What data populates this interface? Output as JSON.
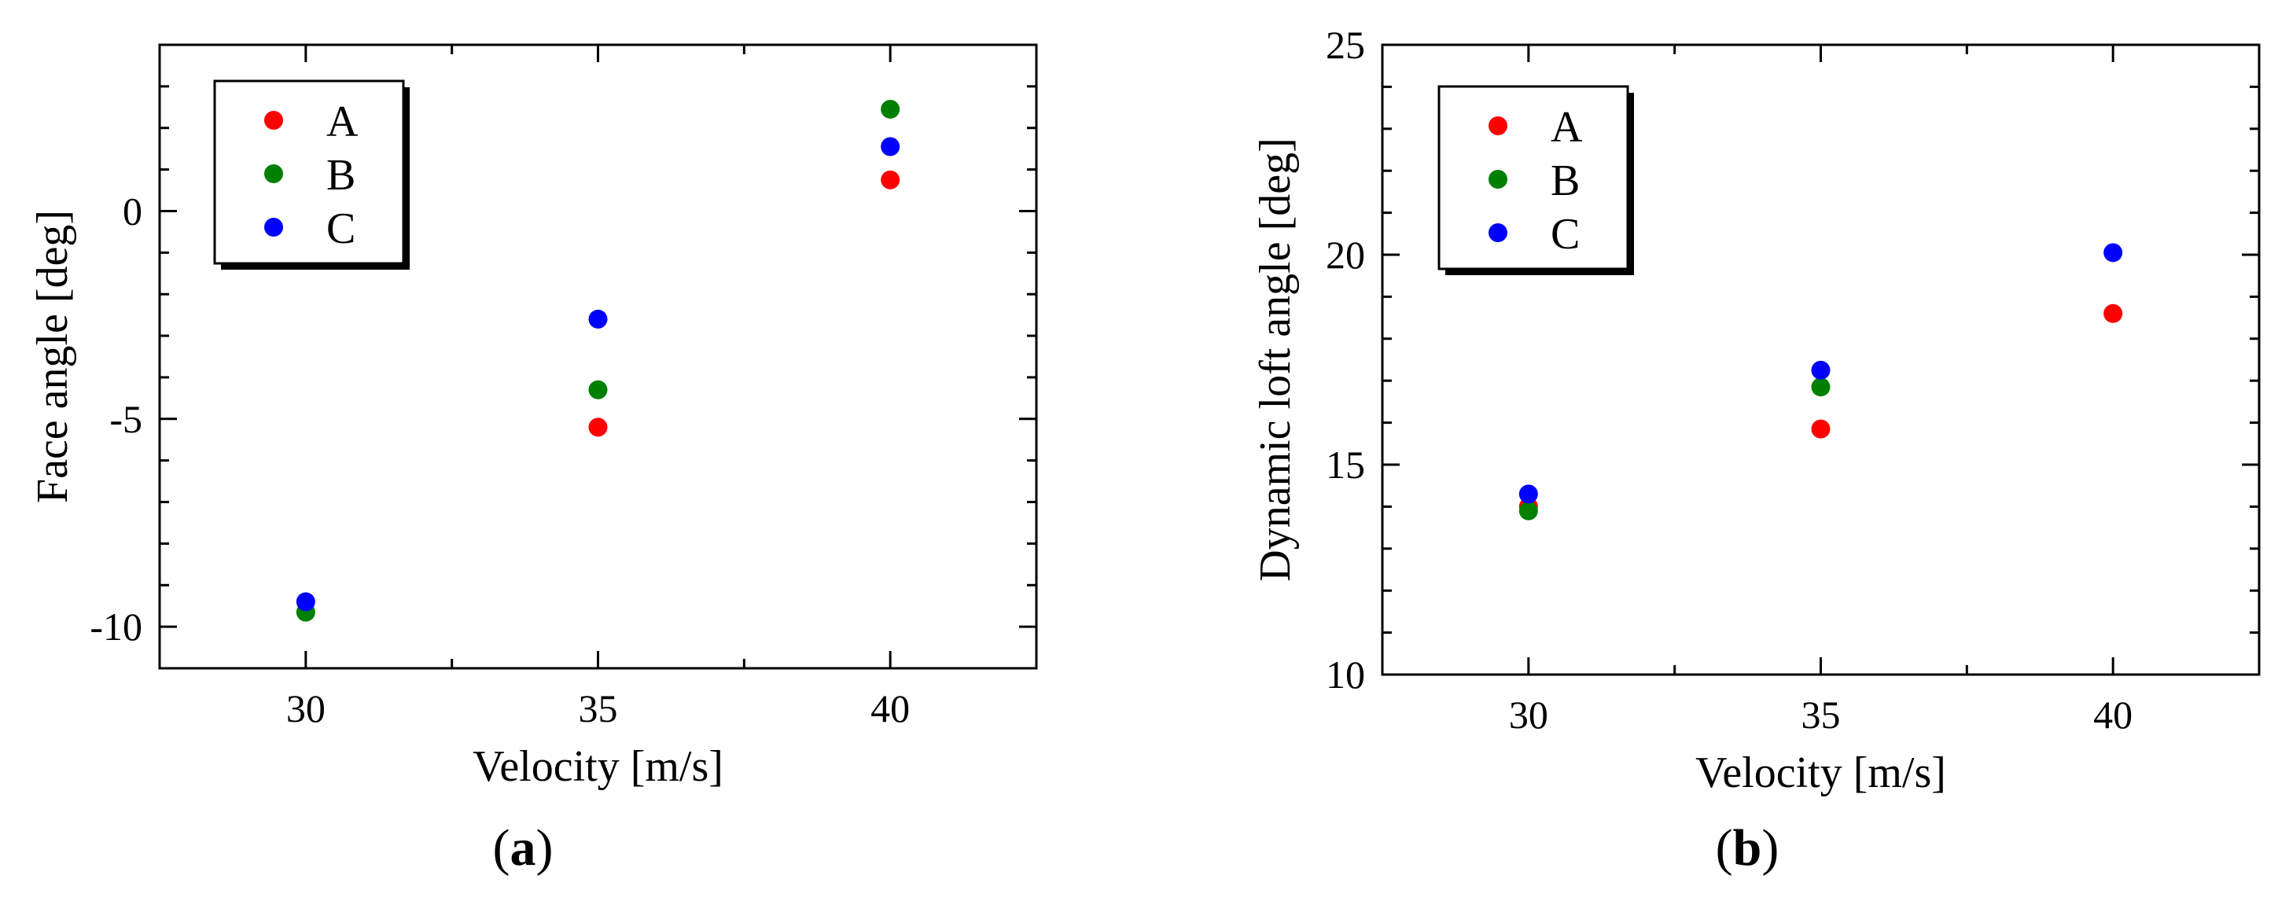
{
  "colors": {
    "A": "#ff0000",
    "B": "#008000",
    "C": "#0000ff"
  },
  "chart_data": [
    {
      "type": "scatter",
      "panel_label": {
        "open": "(",
        "letter": "a",
        "close": ")"
      },
      "xlabel": "Velocity [m/s]",
      "ylabel": "Face angle [deg]",
      "xlim": [
        27.5,
        42.5
      ],
      "ylim": [
        -11,
        4
      ],
      "x_ticks": [
        30,
        35,
        40
      ],
      "x_tick_labels": [
        "30",
        "35",
        "40"
      ],
      "y_ticks": [
        -10,
        -5,
        0
      ],
      "y_tick_labels": [
        "-10",
        "-5",
        "0"
      ],
      "y_minor_step": 1,
      "x_minor_step": 2.5,
      "legend_position": "top-left",
      "series": [
        {
          "name": "A",
          "color": "#ff0000",
          "x": [
            35,
            40
          ],
          "y": [
            -5.2,
            0.75
          ]
        },
        {
          "name": "B",
          "color": "#008000",
          "x": [
            30,
            35,
            40
          ],
          "y": [
            -9.65,
            -4.3,
            2.45
          ]
        },
        {
          "name": "C",
          "color": "#0000ff",
          "x": [
            30,
            35,
            40
          ],
          "y": [
            -9.4,
            -2.6,
            1.55
          ]
        }
      ]
    },
    {
      "type": "scatter",
      "panel_label": {
        "open": "(",
        "letter": "b",
        "close": ")"
      },
      "xlabel": "Velocity [m/s]",
      "ylabel": "Dynamic loft angle [deg]",
      "xlim": [
        27.5,
        42.5
      ],
      "ylim": [
        10,
        25
      ],
      "x_ticks": [
        30,
        35,
        40
      ],
      "x_tick_labels": [
        "30",
        "35",
        "40"
      ],
      "y_ticks": [
        10,
        15,
        20,
        25
      ],
      "y_tick_labels": [
        "10",
        "15",
        "20",
        "25"
      ],
      "y_minor_step": 1,
      "x_minor_step": 2.5,
      "legend_position": "top-left",
      "series": [
        {
          "name": "A",
          "color": "#ff0000",
          "x": [
            30,
            35,
            40
          ],
          "y": [
            14.0,
            15.85,
            18.6
          ]
        },
        {
          "name": "B",
          "color": "#008000",
          "x": [
            30,
            35,
            40
          ],
          "y": [
            13.9,
            16.85,
            null
          ]
        },
        {
          "name": "C",
          "color": "#0000ff",
          "x": [
            30,
            35,
            40
          ],
          "y": [
            14.3,
            17.25,
            20.05
          ]
        }
      ]
    }
  ]
}
